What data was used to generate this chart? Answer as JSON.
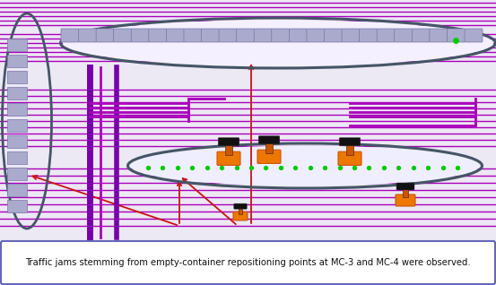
{
  "fig_width": 5.53,
  "fig_height": 3.18,
  "dpi": 100,
  "bg_color": "#ece8f4",
  "caption": "Traffic jams stemming from empty-container repositioning points at MC-3 and MC-4 were observed.",
  "caption_box_color": "#ffffff",
  "caption_border_color": "#6666bb",
  "caption_fontsize": 7.2,
  "purple": "#aa00bb",
  "purple2": "#cc00cc",
  "dark_purple": "#7700aa",
  "gray_ellipse": "#445566",
  "orange": "#ee7700",
  "orange2": "#cc5500",
  "green": "#00cc00",
  "red": "#cc1111",
  "white_bg": "#f5f0ff",
  "container_gray": "#aaaacc",
  "container_edge": "#7777aa"
}
